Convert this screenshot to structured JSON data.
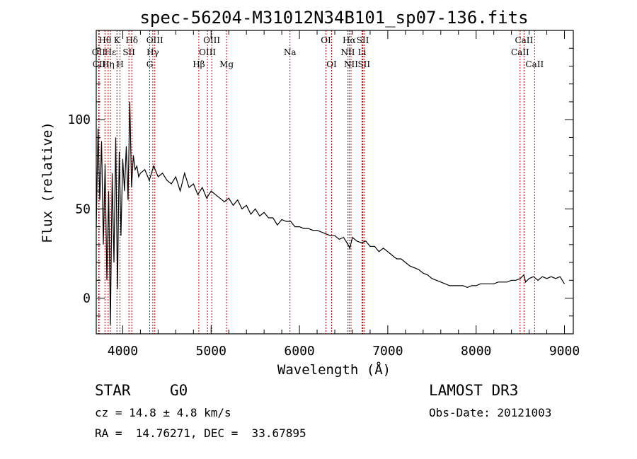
{
  "chart_data": {
    "type": "line",
    "title": "spec-56204-M31012N34B101_sp07-136.fits",
    "xlabel": "Wavelength (Å)",
    "ylabel": "Flux (relative)",
    "xlim": [
      3700,
      9100
    ],
    "ylim": [
      -20,
      150
    ],
    "xticks": [
      4000,
      5000,
      6000,
      7000,
      8000,
      9000
    ],
    "yticks": [
      0,
      50,
      100
    ],
    "series": [
      {
        "name": "flux",
        "x": [
          3700,
          3720,
          3740,
          3760,
          3780,
          3800,
          3820,
          3840,
          3860,
          3880,
          3900,
          3920,
          3940,
          3960,
          3980,
          4000,
          4020,
          4040,
          4060,
          4080,
          4100,
          4120,
          4140,
          4160,
          4180,
          4200,
          4250,
          4300,
          4350,
          4400,
          4450,
          4500,
          4550,
          4600,
          4650,
          4700,
          4750,
          4800,
          4850,
          4900,
          4950,
          5000,
          5050,
          5100,
          5150,
          5200,
          5250,
          5300,
          5350,
          5400,
          5450,
          5500,
          5550,
          5600,
          5650,
          5700,
          5750,
          5800,
          5850,
          5900,
          5950,
          6000,
          6050,
          6100,
          6150,
          6200,
          6250,
          6300,
          6350,
          6400,
          6450,
          6500,
          6550,
          6570,
          6600,
          6650,
          6700,
          6750,
          6800,
          6850,
          6900,
          6950,
          7000,
          7050,
          7100,
          7150,
          7200,
          7250,
          7300,
          7350,
          7400,
          7450,
          7500,
          7550,
          7600,
          7650,
          7700,
          7750,
          7800,
          7850,
          7900,
          7950,
          8000,
          8050,
          8100,
          8150,
          8200,
          8250,
          8300,
          8350,
          8400,
          8450,
          8500,
          8540,
          8560,
          8600,
          8650,
          8700,
          8750,
          8800,
          8850,
          8900,
          8950,
          9000
        ],
        "values": [
          40,
          95,
          55,
          88,
          30,
          75,
          10,
          60,
          -15,
          70,
          20,
          90,
          5,
          82,
          35,
          78,
          60,
          85,
          55,
          110,
          62,
          80,
          72,
          74,
          68,
          70,
          72,
          66,
          74,
          68,
          70,
          66,
          64,
          68,
          60,
          70,
          62,
          64,
          58,
          62,
          56,
          60,
          58,
          56,
          54,
          56,
          52,
          55,
          50,
          52,
          47,
          50,
          46,
          48,
          45,
          45,
          41,
          44,
          43,
          43,
          40,
          40,
          39,
          39,
          38,
          38,
          37,
          36,
          35,
          35,
          33,
          34,
          30,
          28,
          34,
          32,
          31,
          32,
          29,
          29,
          26,
          28,
          26,
          24,
          22,
          22,
          20,
          18,
          17,
          16,
          14,
          13,
          11,
          10,
          9,
          8,
          7,
          7,
          7,
          7,
          6,
          7,
          7,
          8,
          8,
          8,
          8,
          9,
          9,
          9,
          10,
          10,
          11,
          13,
          9,
          11,
          12,
          10,
          12,
          11,
          12,
          11,
          12,
          8
        ]
      }
    ],
    "spectral_lines": [
      {
        "label": "Hθ",
        "wavelength": 3798,
        "row": 0
      },
      {
        "label": "OII",
        "wavelength": 3727,
        "row": 1
      },
      {
        "label": "CII",
        "wavelength": 3733,
        "row": 2
      },
      {
        "label": "K",
        "wavelength": 3934,
        "row": 0
      },
      {
        "label": "H",
        "wavelength": 3969,
        "row": 2
      },
      {
        "label": "Hε",
        "wavelength": 3860,
        "row": 1
      },
      {
        "label": "Hη",
        "wavelength": 3835,
        "row": 2
      },
      {
        "label": "SII",
        "wavelength": 4070,
        "row": 1
      },
      {
        "label": "Hδ",
        "wavelength": 4102,
        "row": 0
      },
      {
        "label": "OIII",
        "wavelength": 4363,
        "row": 0
      },
      {
        "label": "Hγ",
        "wavelength": 4340,
        "row": 1
      },
      {
        "label": "G",
        "wavelength": 4305,
        "row": 2
      },
      {
        "label": "OIII",
        "wavelength": 5007,
        "row": 0
      },
      {
        "label": "OIII",
        "wavelength": 4959,
        "row": 1
      },
      {
        "label": "Hβ",
        "wavelength": 4861,
        "row": 2
      },
      {
        "label": "Mg",
        "wavelength": 5175,
        "row": 2
      },
      {
        "label": "Na",
        "wavelength": 5893,
        "row": 1
      },
      {
        "label": "OI",
        "wavelength": 6300,
        "row": 0
      },
      {
        "label": "OI",
        "wavelength": 6364,
        "row": 2
      },
      {
        "label": "Hα",
        "wavelength": 6563,
        "row": 0
      },
      {
        "label": "NII",
        "wavelength": 6548,
        "row": 1
      },
      {
        "label": "NII",
        "wavelength": 6584,
        "row": 2
      },
      {
        "label": "SII",
        "wavelength": 6717,
        "row": 0
      },
      {
        "label": "Li",
        "wavelength": 6708,
        "row": 1
      },
      {
        "label": "SII",
        "wavelength": 6731,
        "row": 2
      },
      {
        "label": "CaII",
        "wavelength": 8542,
        "row": 0
      },
      {
        "label": "CaII",
        "wavelength": 8498,
        "row": 1
      },
      {
        "label": "CaII",
        "wavelength": 8662,
        "row": 2
      }
    ]
  },
  "info": {
    "class": "STAR",
    "subclass": "G0",
    "survey": "LAMOST DR3",
    "cz": "cz = 14.8 ± 4.8 km/s",
    "obs_date": "Obs-Date: 20121003",
    "coords": "RA =  14.76271, DEC =  33.67895"
  },
  "colors": {
    "spectrum": "#000000",
    "line_markers": "#cc0000",
    "axes": "#000000"
  }
}
